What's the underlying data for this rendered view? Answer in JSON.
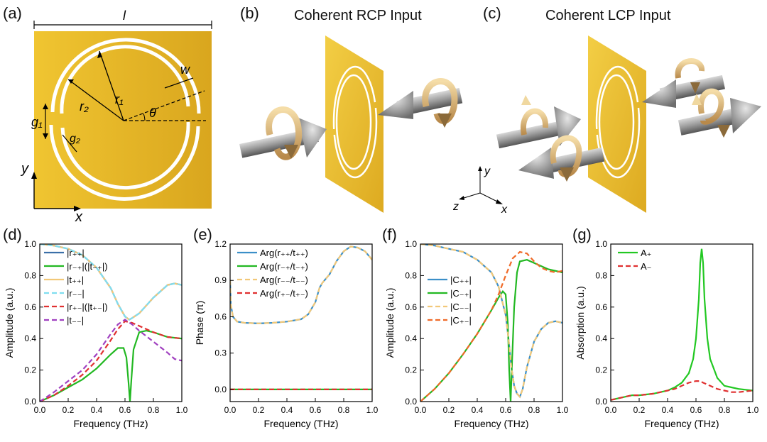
{
  "panels": {
    "a": "(a)",
    "b": "(b)",
    "c": "(c)",
    "d": "(d)",
    "e": "(e)",
    "f": "(f)",
    "g": "(g)"
  },
  "unit_cell": {
    "label_l": "l",
    "label_w": "w",
    "label_r1": "r₁",
    "label_r2": "r₂",
    "label_g1": "g₁",
    "label_g2": "g₂",
    "label_theta": "θ",
    "axis_x": "x",
    "axis_y": "y",
    "gold": "#E8B92C"
  },
  "titles": {
    "rcp": "Coherent RCP Input",
    "lcp": "Coherent LCP Input"
  },
  "axes3d": {
    "x": "x",
    "y": "y",
    "z": "z"
  },
  "chart_data": [
    {
      "type": "line",
      "id": "d",
      "xlabel": "Frequency (THz)",
      "ylabel": "Amplitude (a.u.)",
      "xlim": [
        0,
        1
      ],
      "ylim": [
        0,
        1
      ],
      "xticks": [
        "0.0",
        "0.2",
        "0.4",
        "0.6",
        "0.8",
        "1.0"
      ],
      "yticks": [
        "0.0",
        "0.2",
        "0.4",
        "0.6",
        "0.8",
        "1.0"
      ],
      "legend_position": "bottom-left",
      "series": [
        {
          "name": "|r₊₊|",
          "color": "#3B6FA8",
          "dash": false,
          "x": [
            0,
            0.1,
            0.2,
            0.3,
            0.4,
            0.5,
            0.55,
            0.6,
            0.63,
            0.65,
            0.7,
            0.8,
            0.9,
            0.95,
            1.0
          ],
          "y": [
            1,
            0.99,
            0.97,
            0.93,
            0.85,
            0.72,
            0.62,
            0.54,
            0.52,
            0.53,
            0.56,
            0.66,
            0.74,
            0.75,
            0.74
          ]
        },
        {
          "name": "|r₋₊|(|t₋₊|)",
          "color": "#22B822",
          "dash": false,
          "x": [
            0,
            0.1,
            0.2,
            0.3,
            0.4,
            0.5,
            0.55,
            0.59,
            0.61,
            0.625,
            0.635,
            0.645,
            0.66,
            0.7,
            0.75,
            0.8,
            0.9,
            1.0
          ],
          "y": [
            0,
            0.04,
            0.09,
            0.14,
            0.21,
            0.3,
            0.34,
            0.34,
            0.28,
            0.12,
            0.0,
            0.14,
            0.33,
            0.44,
            0.45,
            0.44,
            0.41,
            0.4
          ]
        },
        {
          "name": "|t₊₊|",
          "color": "#F2C878",
          "dash": false,
          "x": [
            0,
            0.1,
            0.2,
            0.3,
            0.4,
            0.5,
            0.55,
            0.6,
            0.63,
            0.65,
            0.7,
            0.8,
            0.9,
            0.95,
            1.0
          ],
          "y": [
            1,
            0.99,
            0.97,
            0.93,
            0.85,
            0.72,
            0.62,
            0.54,
            0.52,
            0.53,
            0.56,
            0.66,
            0.74,
            0.75,
            0.74
          ]
        },
        {
          "name": "|r₋₋|",
          "color": "#7FDDF0",
          "dash": true,
          "x": [
            0,
            0.1,
            0.2,
            0.3,
            0.4,
            0.5,
            0.55,
            0.6,
            0.63,
            0.65,
            0.7,
            0.8,
            0.9,
            0.95,
            1.0
          ],
          "y": [
            1,
            0.99,
            0.97,
            0.93,
            0.85,
            0.72,
            0.62,
            0.54,
            0.52,
            0.53,
            0.56,
            0.66,
            0.74,
            0.75,
            0.74
          ]
        },
        {
          "name": "|r₊₋|(|t₊₋|)",
          "color": "#E03030",
          "dash": true,
          "x": [
            0,
            0.1,
            0.2,
            0.3,
            0.4,
            0.5,
            0.55,
            0.6,
            0.65,
            0.7,
            0.75,
            0.8,
            0.9,
            1.0
          ],
          "y": [
            0,
            0.04,
            0.1,
            0.17,
            0.26,
            0.39,
            0.46,
            0.51,
            0.5,
            0.48,
            0.46,
            0.44,
            0.41,
            0.4
          ]
        },
        {
          "name": "|t₋₋|",
          "color": "#A040C0",
          "dash": true,
          "x": [
            0,
            0.1,
            0.2,
            0.3,
            0.4,
            0.5,
            0.55,
            0.6,
            0.65,
            0.7,
            0.8,
            0.9,
            0.95,
            1.0
          ],
          "y": [
            0,
            0.06,
            0.13,
            0.2,
            0.3,
            0.43,
            0.49,
            0.52,
            0.49,
            0.45,
            0.38,
            0.31,
            0.27,
            0.26
          ]
        }
      ]
    },
    {
      "type": "line",
      "id": "e",
      "xlabel": "Frequency (THz)",
      "ylabel": "Phase (π)",
      "xlim": [
        0,
        1
      ],
      "ylim": [
        -0.1,
        1.2
      ],
      "xticks": [
        "0.0",
        "0.2",
        "0.4",
        "0.6",
        "0.8",
        "1.0"
      ],
      "ytickvals": [
        0,
        0.3,
        0.6,
        0.9,
        1.2
      ],
      "yticks": [
        "0.0",
        "0.3",
        "0.6",
        "0.9",
        "1.2"
      ],
      "legend_position": "top-left",
      "series": [
        {
          "name": "Arg(r₊₊/t₊₊)",
          "color": "#3B8FC8",
          "dash": false,
          "x": [
            0,
            0.005,
            0.02,
            0.05,
            0.1,
            0.2,
            0.3,
            0.4,
            0.5,
            0.55,
            0.6,
            0.63,
            0.65,
            0.7,
            0.75,
            0.8,
            0.85,
            0.9,
            0.95,
            1.0
          ],
          "y": [
            0.9,
            0.7,
            0.6,
            0.56,
            0.55,
            0.545,
            0.55,
            0.56,
            0.58,
            0.62,
            0.72,
            0.84,
            0.88,
            0.95,
            1.06,
            1.14,
            1.18,
            1.17,
            1.14,
            1.07
          ]
        },
        {
          "name": "Arg(r₋₊/t₋₊)",
          "color": "#22B822",
          "dash": false,
          "x": [
            0,
            1
          ],
          "y": [
            0,
            0
          ]
        },
        {
          "name": "Arg(r₋₋/t₋₋)",
          "color": "#F2C878",
          "dash": true,
          "x": [
            0,
            0.005,
            0.02,
            0.05,
            0.1,
            0.2,
            0.3,
            0.4,
            0.5,
            0.55,
            0.6,
            0.63,
            0.65,
            0.7,
            0.75,
            0.8,
            0.85,
            0.9,
            0.95,
            1.0
          ],
          "y": [
            0.9,
            0.7,
            0.6,
            0.56,
            0.55,
            0.545,
            0.55,
            0.56,
            0.58,
            0.62,
            0.72,
            0.84,
            0.88,
            0.95,
            1.06,
            1.14,
            1.18,
            1.17,
            1.14,
            1.07
          ]
        },
        {
          "name": "Arg(r₊₋/t₊₋)",
          "color": "#E03030",
          "dash": true,
          "x": [
            0,
            1
          ],
          "y": [
            0,
            0
          ]
        }
      ]
    },
    {
      "type": "line",
      "id": "f",
      "xlabel": "Frequency (THz)",
      "ylabel": "Amplitude (a.u.)",
      "xlim": [
        0,
        1
      ],
      "ylim": [
        0,
        1
      ],
      "xticks": [
        "0.0",
        "0.2",
        "0.4",
        "0.6",
        "0.8",
        "1.0"
      ],
      "yticks": [
        "0.0",
        "0.2",
        "0.4",
        "0.6",
        "0.8",
        "1.0"
      ],
      "legend_position": "middle-left",
      "series": [
        {
          "name": "|C₊₊|",
          "color": "#3B8FC8",
          "dash": false,
          "x": [
            0,
            0.1,
            0.2,
            0.3,
            0.4,
            0.5,
            0.55,
            0.6,
            0.62,
            0.64,
            0.66,
            0.68,
            0.7,
            0.72,
            0.75,
            0.8,
            0.85,
            0.9,
            0.95,
            1.0
          ],
          "y": [
            1,
            0.99,
            0.97,
            0.95,
            0.9,
            0.82,
            0.73,
            0.55,
            0.4,
            0.22,
            0.1,
            0.05,
            0.03,
            0.08,
            0.22,
            0.38,
            0.46,
            0.5,
            0.51,
            0.5
          ]
        },
        {
          "name": "|C₋₊|",
          "color": "#22B822",
          "dash": false,
          "x": [
            0,
            0.1,
            0.2,
            0.3,
            0.4,
            0.5,
            0.55,
            0.58,
            0.6,
            0.615,
            0.625,
            0.635,
            0.645,
            0.66,
            0.68,
            0.7,
            0.75,
            0.8,
            0.9,
            1.0
          ],
          "y": [
            0,
            0.08,
            0.18,
            0.3,
            0.43,
            0.58,
            0.66,
            0.7,
            0.68,
            0.5,
            0.2,
            0.0,
            0.25,
            0.6,
            0.82,
            0.89,
            0.9,
            0.88,
            0.84,
            0.82
          ]
        },
        {
          "name": "|C₋₋|",
          "color": "#F2C878",
          "dash": true,
          "x": [
            0,
            0.1,
            0.2,
            0.3,
            0.4,
            0.5,
            0.55,
            0.6,
            0.62,
            0.64,
            0.66,
            0.68,
            0.7,
            0.72,
            0.75,
            0.8,
            0.85,
            0.9,
            0.95,
            1.0
          ],
          "y": [
            1,
            0.99,
            0.97,
            0.95,
            0.9,
            0.82,
            0.73,
            0.55,
            0.4,
            0.22,
            0.1,
            0.05,
            0.03,
            0.08,
            0.22,
            0.38,
            0.46,
            0.5,
            0.51,
            0.5
          ]
        },
        {
          "name": "|C₊₋|",
          "color": "#F06A28",
          "dash": true,
          "x": [
            0,
            0.1,
            0.2,
            0.3,
            0.4,
            0.5,
            0.55,
            0.6,
            0.65,
            0.7,
            0.75,
            0.8,
            0.85,
            0.9,
            0.95,
            1.0
          ],
          "y": [
            0,
            0.08,
            0.18,
            0.3,
            0.43,
            0.58,
            0.68,
            0.8,
            0.91,
            0.95,
            0.94,
            0.89,
            0.85,
            0.83,
            0.82,
            0.83
          ]
        }
      ]
    },
    {
      "type": "line",
      "id": "g",
      "xlabel": "Frequency (THz)",
      "ylabel": "Absorption (a.u.)",
      "xlim": [
        0,
        1
      ],
      "ylim": [
        0,
        1
      ],
      "xticks": [
        "0.0",
        "0.2",
        "0.4",
        "0.6",
        "0.8",
        "1.0"
      ],
      "yticks": [
        "0.0",
        "0.2",
        "0.4",
        "0.6",
        "0.8",
        "1.0"
      ],
      "legend_position": "top-left",
      "series": [
        {
          "name": "A₊",
          "color": "#22C822",
          "dash": false,
          "x": [
            0,
            0.1,
            0.15,
            0.2,
            0.3,
            0.4,
            0.45,
            0.5,
            0.55,
            0.58,
            0.6,
            0.62,
            0.63,
            0.64,
            0.65,
            0.66,
            0.68,
            0.7,
            0.75,
            0.8,
            0.85,
            0.9,
            1.0
          ],
          "y": [
            0.01,
            0.03,
            0.04,
            0.04,
            0.05,
            0.07,
            0.09,
            0.12,
            0.18,
            0.27,
            0.4,
            0.65,
            0.88,
            0.97,
            0.88,
            0.65,
            0.4,
            0.27,
            0.15,
            0.1,
            0.09,
            0.08,
            0.07
          ]
        },
        {
          "name": "A₋",
          "color": "#E03030",
          "dash": true,
          "x": [
            0,
            0.1,
            0.15,
            0.2,
            0.3,
            0.4,
            0.45,
            0.5,
            0.55,
            0.6,
            0.63,
            0.65,
            0.7,
            0.75,
            0.8,
            0.85,
            0.9,
            1.0
          ],
          "y": [
            0.01,
            0.03,
            0.04,
            0.04,
            0.05,
            0.07,
            0.08,
            0.1,
            0.12,
            0.13,
            0.13,
            0.12,
            0.1,
            0.08,
            0.07,
            0.06,
            0.06,
            0.07
          ]
        }
      ]
    }
  ]
}
